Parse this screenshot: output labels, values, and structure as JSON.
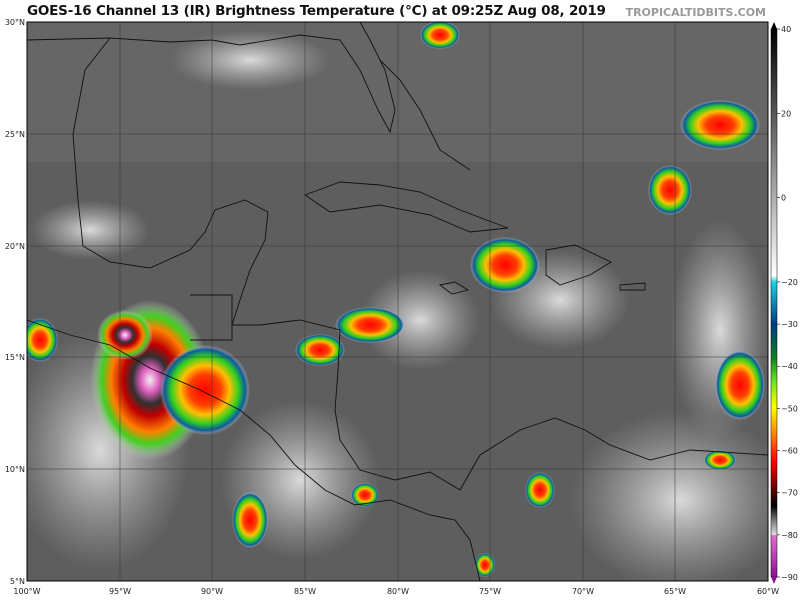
{
  "header": {
    "title": "GOES-16 Channel 13 (IR) Brightness Temperature (°C) at 09:25Z Aug 08, 2019",
    "brand": "TROPICALTIDBITS.COM"
  },
  "map": {
    "lat_labels": [
      "30°N",
      "25°N",
      "20°N",
      "15°N",
      "10°N",
      "5°N"
    ],
    "lon_labels": [
      "100°W",
      "95°W",
      "90°W",
      "85°W",
      "80°W",
      "75°W",
      "70°W",
      "65°W",
      "60°W"
    ],
    "extent": {
      "lon": [
        -100,
        -60
      ],
      "lat": [
        5,
        30
      ]
    },
    "background_color": "#5a5a5a"
  },
  "colorbar": {
    "unit": "°C",
    "ticks": [
      "40",
      "20",
      "0",
      "−20",
      "−30",
      "−40",
      "−50",
      "−60",
      "−70",
      "−80",
      "−90"
    ],
    "range": [
      -90,
      40
    ]
  }
}
